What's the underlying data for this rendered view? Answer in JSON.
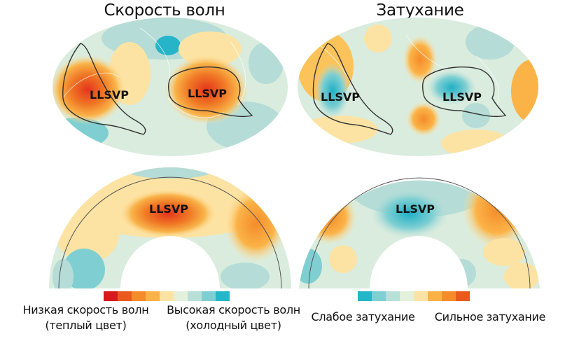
{
  "titles": {
    "left": "Скорость волн",
    "right": "Затухание"
  },
  "region_label": "LLSVP",
  "legend_left": {
    "colors": [
      "#d7191c",
      "#ea5a1d",
      "#f48c2a",
      "#fbb347",
      "#fde3a3",
      "#e3f0dc",
      "#b9dfd9",
      "#7fcfd2",
      "#24b6c9"
    ],
    "low_label": "Низкая скорость волн\n(теплый цвет)",
    "high_label": "Высокая скорость волн\n(холодный цвет)"
  },
  "legend_right": {
    "colors": [
      "#24b6c9",
      "#7fcfd2",
      "#b9dfd9",
      "#e3f0dc",
      "#fde3a3",
      "#fbb347",
      "#f48c2a",
      "#ea5a1d"
    ],
    "low_label": "Слабое затухание",
    "high_label": "Сильное затухание"
  }
}
